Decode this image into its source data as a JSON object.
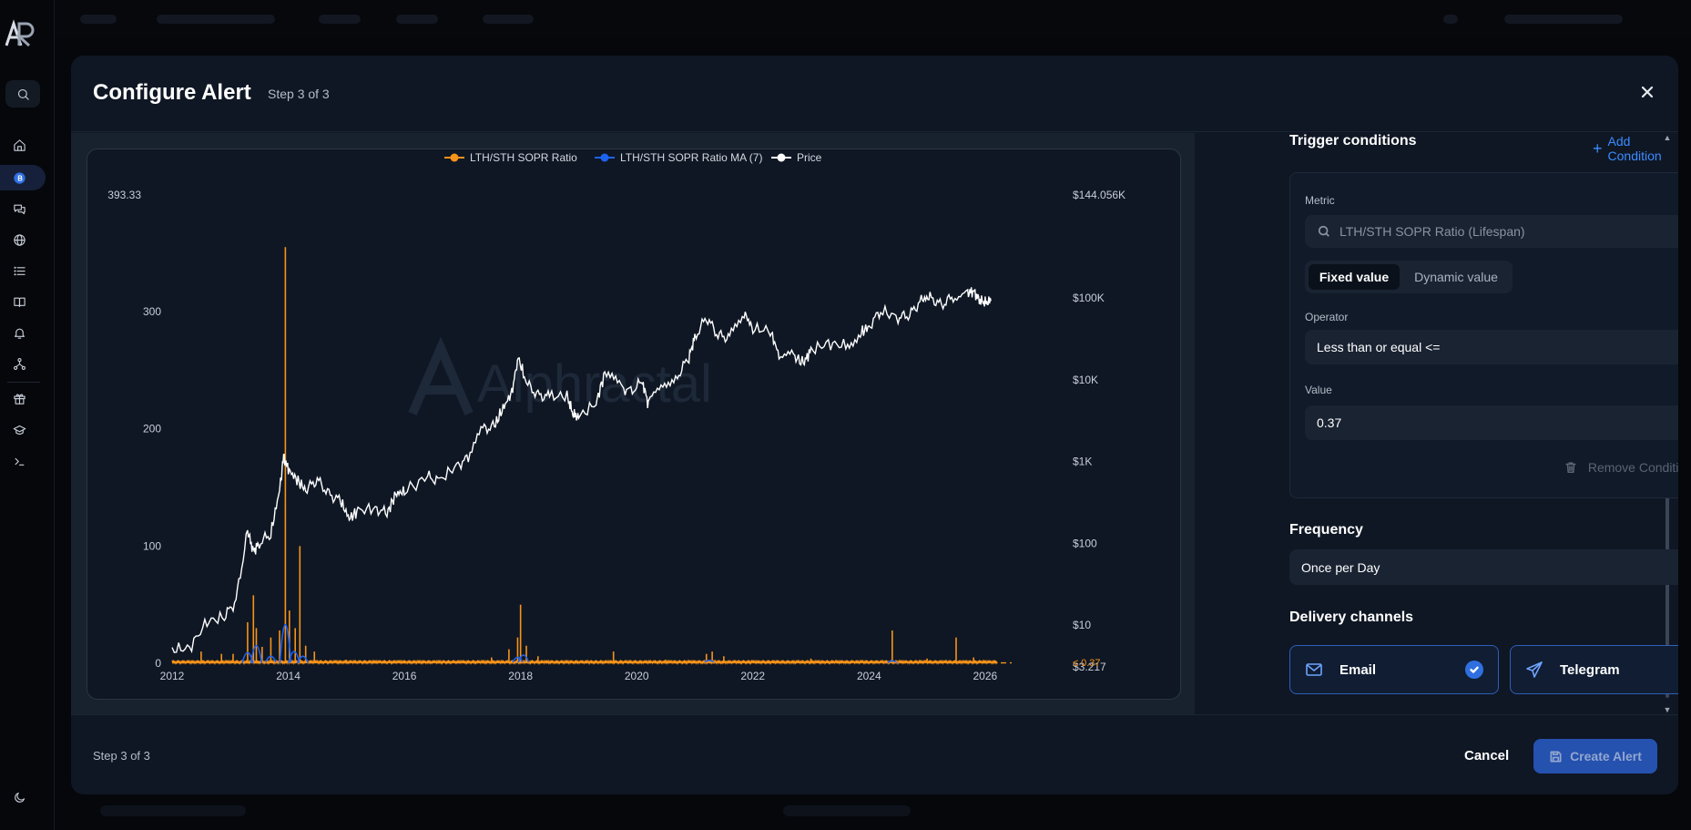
{
  "modal": {
    "title": "Configure Alert",
    "step": "Step 3 of 3",
    "footer_step": "Step 3 of 3",
    "cancel_label": "Cancel",
    "create_label": "Create Alert"
  },
  "config": {
    "trigger_title": "Trigger conditions",
    "add_condition_label": "Add Condition",
    "metric_label": "Metric",
    "metric_value": "LTH/STH SOPR Ratio (Lifespan)",
    "value_mode_options": [
      "Fixed value",
      "Dynamic value"
    ],
    "value_mode_selected": "Fixed value",
    "operator_label": "Operator",
    "operator_value": "Less than or equal <=",
    "value_label": "Value",
    "value_value": "0.37",
    "remove_condition_label": "Remove Condition",
    "frequency_title": "Frequency",
    "frequency_value": "Once per Day",
    "delivery_title": "Delivery channels",
    "channels": [
      {
        "label": "Email",
        "icon": "mail-icon",
        "checked": true
      },
      {
        "label": "Telegram",
        "icon": "send-icon",
        "checked": true
      }
    ]
  },
  "chart_data": {
    "type": "line",
    "watermark": "Alphractal",
    "legend_position": "top-center",
    "series": [
      {
        "name": "LTH/STH SOPR Ratio",
        "color": "#f7931a",
        "axis": "left"
      },
      {
        "name": "LTH/STH SOPR Ratio MA (7)",
        "color": "#1e63f0",
        "axis": "left"
      },
      {
        "name": "Price",
        "color": "#ffffff",
        "axis": "right",
        "scale": "log"
      }
    ],
    "x_ticks": [
      "2012",
      "2014",
      "2016",
      "2018",
      "2020",
      "2022",
      "2024",
      "2026"
    ],
    "xlim": [
      2012,
      2026.3
    ],
    "left_axis": {
      "ylim": [
        0,
        393.33
      ],
      "ticks": [
        0,
        100,
        200,
        300
      ],
      "top_label": "393.33"
    },
    "right_axis": {
      "ticks": [
        "$10",
        "$100",
        "$1K",
        "$10K",
        "$100K"
      ],
      "top_label": "$144.056K",
      "bottom_label": "$3.217"
    },
    "threshold_line": {
      "value": 0.37,
      "label": "≤ 0.37",
      "color": "#f7931a",
      "style": "dashed"
    },
    "price_points": [
      [
        2012.0,
        5.0
      ],
      [
        2012.3,
        5.2
      ],
      [
        2012.6,
        11.0
      ],
      [
        2012.9,
        12.5
      ],
      [
        2013.1,
        20
      ],
      [
        2013.3,
        140
      ],
      [
        2013.4,
        80
      ],
      [
        2013.5,
        100
      ],
      [
        2013.7,
        130
      ],
      [
        2013.85,
        450
      ],
      [
        2013.92,
        1150
      ],
      [
        2014.0,
        800
      ],
      [
        2014.15,
        600
      ],
      [
        2014.3,
        450
      ],
      [
        2014.5,
        600
      ],
      [
        2014.7,
        400
      ],
      [
        2014.9,
        330
      ],
      [
        2015.05,
        200
      ],
      [
        2015.2,
        250
      ],
      [
        2015.5,
        270
      ],
      [
        2015.7,
        230
      ],
      [
        2015.85,
        400
      ],
      [
        2016.0,
        430
      ],
      [
        2016.4,
        650
      ],
      [
        2016.6,
        580
      ],
      [
        2016.9,
        900
      ],
      [
        2017.1,
        1100
      ],
      [
        2017.35,
        2500
      ],
      [
        2017.55,
        2700
      ],
      [
        2017.7,
        4500
      ],
      [
        2017.85,
        7000
      ],
      [
        2017.96,
        19000
      ],
      [
        2018.1,
        9000
      ],
      [
        2018.3,
        6500
      ],
      [
        2018.5,
        6200
      ],
      [
        2018.8,
        6400
      ],
      [
        2018.9,
        3800
      ],
      [
        2019.0,
        3500
      ],
      [
        2019.3,
        5200
      ],
      [
        2019.45,
        12000
      ],
      [
        2019.7,
        8500
      ],
      [
        2019.9,
        7200
      ],
      [
        2020.1,
        9500
      ],
      [
        2020.2,
        5000
      ],
      [
        2020.45,
        9200
      ],
      [
        2020.7,
        11000
      ],
      [
        2020.9,
        19000
      ],
      [
        2021.0,
        33000
      ],
      [
        2021.2,
        58000
      ],
      [
        2021.4,
        35000
      ],
      [
        2021.6,
        33000
      ],
      [
        2021.85,
        67000
      ],
      [
        2022.0,
        42000
      ],
      [
        2022.3,
        40000
      ],
      [
        2022.45,
        20000
      ],
      [
        2022.7,
        19500
      ],
      [
        2022.87,
        16000
      ],
      [
        2023.0,
        23000
      ],
      [
        2023.3,
        28000
      ],
      [
        2023.6,
        26000
      ],
      [
        2023.85,
        37000
      ],
      [
        2024.0,
        45000
      ],
      [
        2024.2,
        70000
      ],
      [
        2024.5,
        58000
      ],
      [
        2024.7,
        62000
      ],
      [
        2024.9,
        95000
      ],
      [
        2025.05,
        102000
      ],
      [
        2025.25,
        82000
      ],
      [
        2025.45,
        105000
      ],
      [
        2025.7,
        115000
      ],
      [
        2025.8,
        122000
      ],
      [
        2025.9,
        95000
      ],
      [
        2026.0,
        88000
      ],
      [
        2026.1,
        92000
      ]
    ],
    "ratio_spikes": [
      [
        2012.5,
        10
      ],
      [
        2012.85,
        8
      ],
      [
        2013.05,
        8
      ],
      [
        2013.3,
        35
      ],
      [
        2013.4,
        58
      ],
      [
        2013.45,
        30
      ],
      [
        2013.55,
        14
      ],
      [
        2013.7,
        22
      ],
      [
        2013.85,
        28
      ],
      [
        2013.95,
        355
      ],
      [
        2014.02,
        45
      ],
      [
        2014.12,
        30
      ],
      [
        2014.2,
        100
      ],
      [
        2014.3,
        15
      ],
      [
        2014.45,
        10
      ],
      [
        2015.0,
        3
      ],
      [
        2017.5,
        5
      ],
      [
        2017.8,
        12
      ],
      [
        2017.95,
        22
      ],
      [
        2018.0,
        50
      ],
      [
        2018.1,
        15
      ],
      [
        2018.3,
        6
      ],
      [
        2019.6,
        10
      ],
      [
        2020.5,
        3
      ],
      [
        2021.2,
        8
      ],
      [
        2021.3,
        10
      ],
      [
        2021.5,
        6
      ],
      [
        2023.0,
        4
      ],
      [
        2024.4,
        28
      ],
      [
        2025.0,
        4
      ],
      [
        2025.5,
        22
      ],
      [
        2025.8,
        5
      ]
    ],
    "ma_spikes": [
      [
        2013.3,
        18
      ],
      [
        2013.45,
        30
      ],
      [
        2013.7,
        12
      ],
      [
        2013.95,
        66
      ],
      [
        2014.1,
        20
      ],
      [
        2014.25,
        12
      ],
      [
        2017.95,
        10
      ],
      [
        2018.05,
        14
      ],
      [
        2021.25,
        5
      ],
      [
        2024.4,
        4
      ]
    ]
  }
}
